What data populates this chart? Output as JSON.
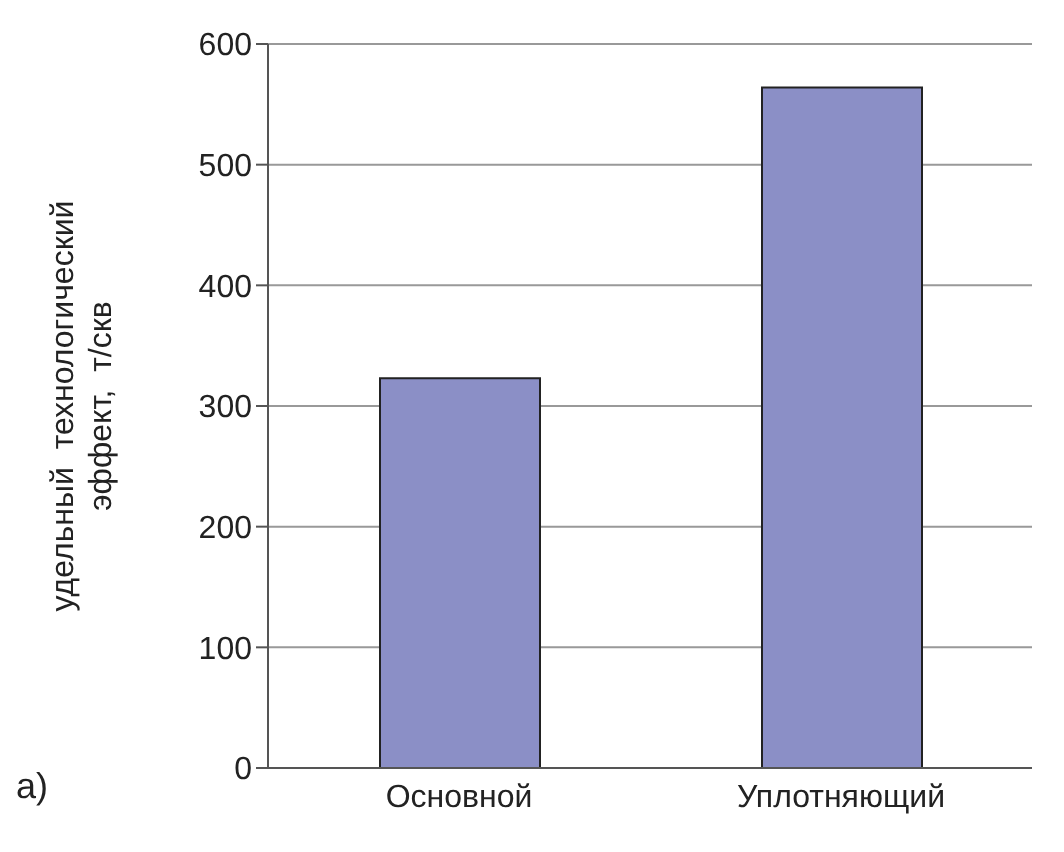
{
  "chart_data": {
    "type": "bar",
    "categories": [
      "Основной",
      "Уплотняющий"
    ],
    "values": [
      323,
      564
    ],
    "color": "#8b8fc6",
    "ylabel": "удельный  технологический\nэффект,  т/скв",
    "ylim": [
      0,
      600
    ],
    "yticks": [
      0,
      100,
      200,
      300,
      400,
      500,
      600
    ],
    "grid": "y",
    "annotations": [
      "а)"
    ]
  }
}
